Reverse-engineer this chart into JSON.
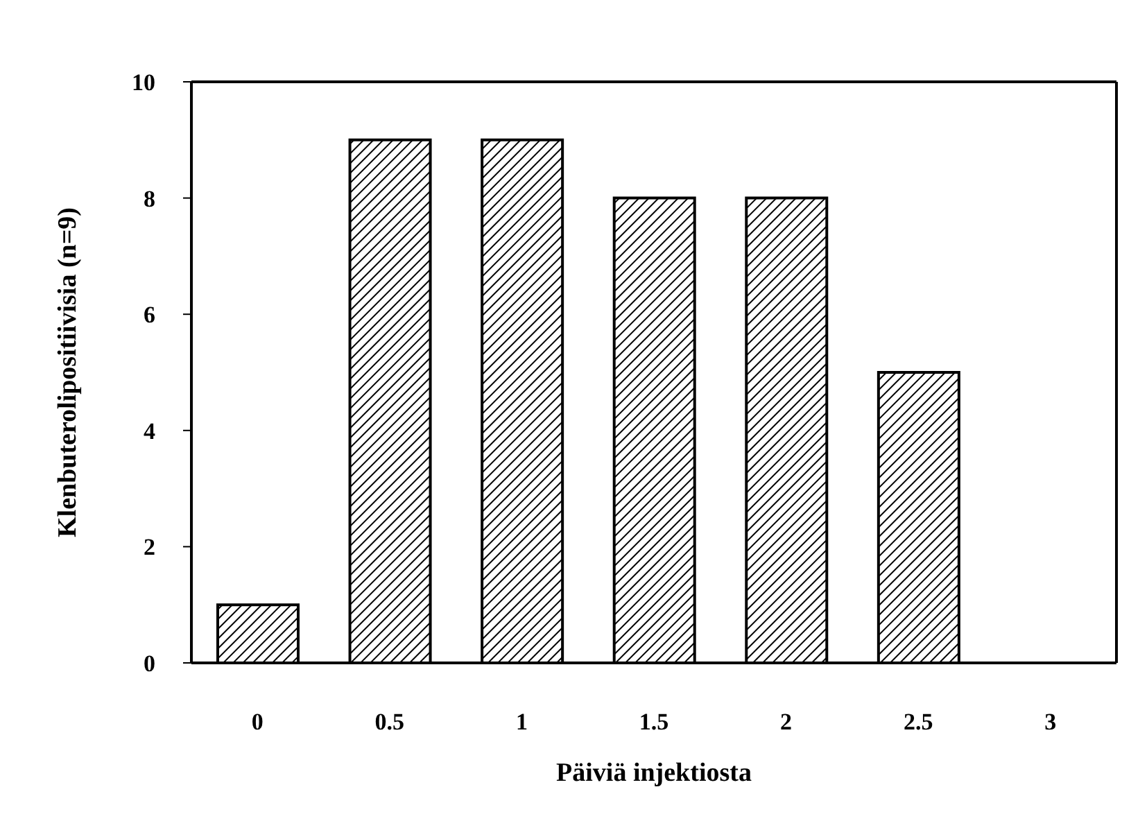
{
  "chart_data": {
    "type": "bar",
    "xlabel": "Päiviä injektiosta",
    "ylabel": "Klenbuterolipositiivisia (n=9)",
    "categories": [
      "0",
      "0.5",
      "1",
      "1.5",
      "2",
      "2.5",
      "3"
    ],
    "values": [
      1,
      9,
      9,
      8,
      8,
      5,
      0
    ],
    "color": "#000000",
    "ylim": [
      0,
      10
    ],
    "yticks": [
      0,
      2,
      4,
      6,
      8,
      10
    ],
    "grid": false,
    "legend": false
  }
}
